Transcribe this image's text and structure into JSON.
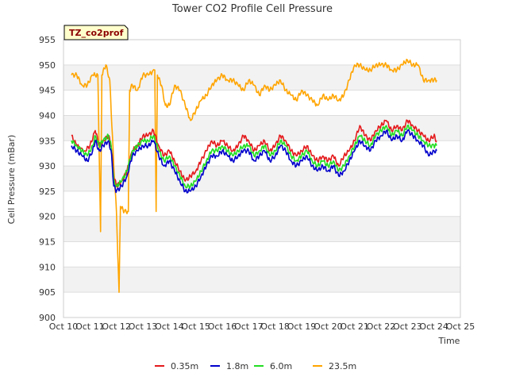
{
  "chart_data": {
    "type": "line",
    "title": "Tower CO2 Profile Cell Pressure",
    "xlabel": "Time",
    "ylabel": "Cell Pressure (mBar)",
    "badge": "TZ_co2prof",
    "ylim": [
      900,
      955
    ],
    "yticks": [
      900,
      905,
      910,
      915,
      920,
      925,
      930,
      935,
      940,
      945,
      950,
      955
    ],
    "xlim": [
      10,
      25
    ],
    "xticks": [
      {
        "v": 10,
        "label": "Oct 10"
      },
      {
        "v": 11,
        "label": "Oct 11"
      },
      {
        "v": 12,
        "label": "Oct 12"
      },
      {
        "v": 13,
        "label": "Oct 13"
      },
      {
        "v": 14,
        "label": "Oct 14"
      },
      {
        "v": 15,
        "label": "Oct 15"
      },
      {
        "v": 16,
        "label": "Oct 16"
      },
      {
        "v": 17,
        "label": "Oct 17"
      },
      {
        "v": 18,
        "label": "Oct 18"
      },
      {
        "v": 19,
        "label": "Oct 19"
      },
      {
        "v": 20,
        "label": "Oct 20"
      },
      {
        "v": 21,
        "label": "Oct 21"
      },
      {
        "v": 22,
        "label": "Oct 22"
      },
      {
        "v": 23,
        "label": "Oct 23"
      },
      {
        "v": 24,
        "label": "Oct 24"
      },
      {
        "v": 25,
        "label": "Oct 25"
      }
    ],
    "grid": true,
    "legend_position": "bottom",
    "series": [
      {
        "name": "0.35m",
        "color": "#e41a1c",
        "points": [
          [
            10.3,
            936
          ],
          [
            10.5,
            934
          ],
          [
            10.8,
            933
          ],
          [
            11.0,
            934
          ],
          [
            11.2,
            937
          ],
          [
            11.35,
            934
          ],
          [
            11.5,
            935
          ],
          [
            11.7,
            936
          ],
          [
            11.8,
            934
          ],
          [
            11.9,
            928
          ],
          [
            12.0,
            926
          ],
          [
            12.2,
            927
          ],
          [
            12.4,
            929
          ],
          [
            12.6,
            933
          ],
          [
            12.8,
            934
          ],
          [
            13.0,
            936
          ],
          [
            13.2,
            936
          ],
          [
            13.4,
            937
          ],
          [
            13.6,
            934
          ],
          [
            13.8,
            932
          ],
          [
            14.0,
            933
          ],
          [
            14.2,
            931
          ],
          [
            14.4,
            929
          ],
          [
            14.6,
            927
          ],
          [
            14.8,
            928
          ],
          [
            15.0,
            929
          ],
          [
            15.2,
            931
          ],
          [
            15.4,
            933
          ],
          [
            15.6,
            935
          ],
          [
            15.8,
            934
          ],
          [
            16.0,
            935
          ],
          [
            16.2,
            934
          ],
          [
            16.4,
            933
          ],
          [
            16.6,
            934
          ],
          [
            16.8,
            936
          ],
          [
            17.0,
            935
          ],
          [
            17.2,
            933
          ],
          [
            17.4,
            934
          ],
          [
            17.6,
            935
          ],
          [
            17.8,
            933
          ],
          [
            18.0,
            934
          ],
          [
            18.2,
            936
          ],
          [
            18.4,
            935
          ],
          [
            18.6,
            933
          ],
          [
            18.8,
            932
          ],
          [
            19.0,
            933
          ],
          [
            19.2,
            934
          ],
          [
            19.4,
            932
          ],
          [
            19.6,
            931
          ],
          [
            19.8,
            932
          ],
          [
            20.0,
            931
          ],
          [
            20.2,
            932
          ],
          [
            20.4,
            930
          ],
          [
            20.6,
            932
          ],
          [
            20.8,
            933
          ],
          [
            21.0,
            935
          ],
          [
            21.2,
            938
          ],
          [
            21.4,
            936
          ],
          [
            21.6,
            935
          ],
          [
            21.8,
            937
          ],
          [
            22.0,
            938
          ],
          [
            22.2,
            939
          ],
          [
            22.4,
            937
          ],
          [
            22.6,
            938
          ],
          [
            22.8,
            937
          ],
          [
            23.0,
            939
          ],
          [
            23.2,
            938
          ],
          [
            23.4,
            937
          ],
          [
            23.6,
            936
          ],
          [
            23.8,
            935
          ],
          [
            24.0,
            936
          ],
          [
            24.1,
            935
          ]
        ]
      },
      {
        "name": "1.8m",
        "color": "#0000cc",
        "points": [
          [
            10.3,
            934
          ],
          [
            10.5,
            933
          ],
          [
            10.7,
            932
          ],
          [
            10.9,
            931
          ],
          [
            11.1,
            933
          ],
          [
            11.2,
            935
          ],
          [
            11.35,
            933
          ],
          [
            11.5,
            934
          ],
          [
            11.7,
            935
          ],
          [
            11.8,
            933
          ],
          [
            11.9,
            926
          ],
          [
            12.0,
            925
          ],
          [
            12.2,
            926
          ],
          [
            12.4,
            928
          ],
          [
            12.6,
            932
          ],
          [
            12.8,
            933
          ],
          [
            13.0,
            934
          ],
          [
            13.2,
            934
          ],
          [
            13.4,
            935
          ],
          [
            13.6,
            932
          ],
          [
            13.8,
            930
          ],
          [
            14.0,
            931
          ],
          [
            14.2,
            929
          ],
          [
            14.4,
            927
          ],
          [
            14.6,
            925
          ],
          [
            14.8,
            925
          ],
          [
            15.0,
            926
          ],
          [
            15.2,
            928
          ],
          [
            15.4,
            930
          ],
          [
            15.6,
            932
          ],
          [
            15.8,
            932
          ],
          [
            16.0,
            933
          ],
          [
            16.2,
            932
          ],
          [
            16.4,
            931
          ],
          [
            16.6,
            932
          ],
          [
            16.8,
            933
          ],
          [
            17.0,
            933
          ],
          [
            17.2,
            931
          ],
          [
            17.4,
            932
          ],
          [
            17.6,
            933
          ],
          [
            17.8,
            931
          ],
          [
            18.0,
            932
          ],
          [
            18.2,
            934
          ],
          [
            18.4,
            933
          ],
          [
            18.6,
            931
          ],
          [
            18.8,
            930
          ],
          [
            19.0,
            931
          ],
          [
            19.2,
            932
          ],
          [
            19.4,
            930
          ],
          [
            19.6,
            929
          ],
          [
            19.8,
            930
          ],
          [
            20.0,
            929
          ],
          [
            20.2,
            930
          ],
          [
            20.4,
            928
          ],
          [
            20.6,
            929
          ],
          [
            20.8,
            931
          ],
          [
            21.0,
            933
          ],
          [
            21.2,
            935
          ],
          [
            21.4,
            934
          ],
          [
            21.6,
            933
          ],
          [
            21.8,
            935
          ],
          [
            22.0,
            936
          ],
          [
            22.2,
            937
          ],
          [
            22.4,
            935
          ],
          [
            22.6,
            936
          ],
          [
            22.8,
            935
          ],
          [
            23.0,
            937
          ],
          [
            23.2,
            936
          ],
          [
            23.4,
            935
          ],
          [
            23.6,
            934
          ],
          [
            23.8,
            932
          ],
          [
            24.0,
            933
          ],
          [
            24.1,
            933
          ]
        ]
      },
      {
        "name": "6.0m",
        "color": "#22dd22",
        "points": [
          [
            10.3,
            935
          ],
          [
            10.5,
            934
          ],
          [
            10.7,
            933
          ],
          [
            10.9,
            932
          ],
          [
            11.1,
            934
          ],
          [
            11.2,
            936
          ],
          [
            11.35,
            934
          ],
          [
            11.5,
            935
          ],
          [
            11.7,
            936
          ],
          [
            11.8,
            934
          ],
          [
            11.9,
            927
          ],
          [
            12.0,
            926
          ],
          [
            12.2,
            927
          ],
          [
            12.4,
            929
          ],
          [
            12.6,
            933
          ],
          [
            12.8,
            934
          ],
          [
            13.0,
            935
          ],
          [
            13.2,
            935
          ],
          [
            13.4,
            936
          ],
          [
            13.6,
            933
          ],
          [
            13.8,
            931
          ],
          [
            14.0,
            932
          ],
          [
            14.2,
            930
          ],
          [
            14.4,
            928
          ],
          [
            14.6,
            926
          ],
          [
            14.8,
            926
          ],
          [
            15.0,
            927
          ],
          [
            15.2,
            929
          ],
          [
            15.4,
            931
          ],
          [
            15.6,
            933
          ],
          [
            15.8,
            933
          ],
          [
            16.0,
            934
          ],
          [
            16.2,
            933
          ],
          [
            16.4,
            932
          ],
          [
            16.6,
            933
          ],
          [
            16.8,
            934
          ],
          [
            17.0,
            934
          ],
          [
            17.2,
            932
          ],
          [
            17.4,
            933
          ],
          [
            17.6,
            934
          ],
          [
            17.8,
            932
          ],
          [
            18.0,
            933
          ],
          [
            18.2,
            935
          ],
          [
            18.4,
            934
          ],
          [
            18.6,
            932
          ],
          [
            18.8,
            931
          ],
          [
            19.0,
            932
          ],
          [
            19.2,
            933
          ],
          [
            19.4,
            931
          ],
          [
            19.6,
            930
          ],
          [
            19.8,
            931
          ],
          [
            20.0,
            930
          ],
          [
            20.2,
            931
          ],
          [
            20.4,
            929
          ],
          [
            20.6,
            930
          ],
          [
            20.8,
            932
          ],
          [
            21.0,
            934
          ],
          [
            21.2,
            936
          ],
          [
            21.4,
            935
          ],
          [
            21.6,
            934
          ],
          [
            21.8,
            936
          ],
          [
            22.0,
            937
          ],
          [
            22.2,
            938
          ],
          [
            22.4,
            936
          ],
          [
            22.6,
            937
          ],
          [
            22.8,
            936
          ],
          [
            23.0,
            938
          ],
          [
            23.2,
            937
          ],
          [
            23.4,
            936
          ],
          [
            23.6,
            935
          ],
          [
            23.8,
            934
          ],
          [
            24.0,
            934
          ],
          [
            24.1,
            934
          ]
        ]
      },
      {
        "name": "23.5m",
        "color": "#ffa500",
        "points": [
          [
            10.3,
            948
          ],
          [
            10.5,
            948
          ],
          [
            10.7,
            946
          ],
          [
            10.9,
            946
          ],
          [
            11.1,
            948
          ],
          [
            11.3,
            948
          ],
          [
            11.4,
            917
          ],
          [
            11.45,
            948
          ],
          [
            11.6,
            950
          ],
          [
            11.75,
            947
          ],
          [
            11.9,
            930
          ],
          [
            12.0,
            921
          ],
          [
            12.1,
            905
          ],
          [
            12.15,
            922
          ],
          [
            12.3,
            921
          ],
          [
            12.45,
            921
          ],
          [
            12.5,
            945
          ],
          [
            12.6,
            946
          ],
          [
            12.8,
            945
          ],
          [
            13.0,
            948
          ],
          [
            13.2,
            948
          ],
          [
            13.45,
            949
          ],
          [
            13.5,
            921
          ],
          [
            13.55,
            948
          ],
          [
            13.7,
            946
          ],
          [
            13.85,
            942
          ],
          [
            14.0,
            942
          ],
          [
            14.2,
            946
          ],
          [
            14.4,
            945
          ],
          [
            14.6,
            942
          ],
          [
            14.8,
            939
          ],
          [
            15.0,
            941
          ],
          [
            15.2,
            943
          ],
          [
            15.4,
            944
          ],
          [
            15.6,
            946
          ],
          [
            15.8,
            947
          ],
          [
            16.0,
            948
          ],
          [
            16.2,
            947
          ],
          [
            16.4,
            947
          ],
          [
            16.6,
            946
          ],
          [
            16.8,
            945
          ],
          [
            17.0,
            947
          ],
          [
            17.2,
            946
          ],
          [
            17.4,
            944
          ],
          [
            17.6,
            946
          ],
          [
            17.8,
            945
          ],
          [
            18.0,
            946
          ],
          [
            18.2,
            947
          ],
          [
            18.4,
            945
          ],
          [
            18.6,
            944
          ],
          [
            18.8,
            943
          ],
          [
            19.0,
            945
          ],
          [
            19.2,
            944
          ],
          [
            19.4,
            943
          ],
          [
            19.6,
            942
          ],
          [
            19.8,
            944
          ],
          [
            20.0,
            943
          ],
          [
            20.2,
            944
          ],
          [
            20.4,
            943
          ],
          [
            20.6,
            944
          ],
          [
            20.8,
            947
          ],
          [
            21.0,
            950
          ],
          [
            21.2,
            950
          ],
          [
            21.4,
            949
          ],
          [
            21.6,
            949
          ],
          [
            21.8,
            950
          ],
          [
            22.0,
            950
          ],
          [
            22.2,
            950
          ],
          [
            22.4,
            949
          ],
          [
            22.6,
            949
          ],
          [
            22.8,
            950
          ],
          [
            23.0,
            951
          ],
          [
            23.2,
            950
          ],
          [
            23.4,
            950
          ],
          [
            23.6,
            947
          ],
          [
            23.8,
            947
          ],
          [
            24.0,
            947
          ],
          [
            24.1,
            947
          ]
        ]
      }
    ]
  }
}
